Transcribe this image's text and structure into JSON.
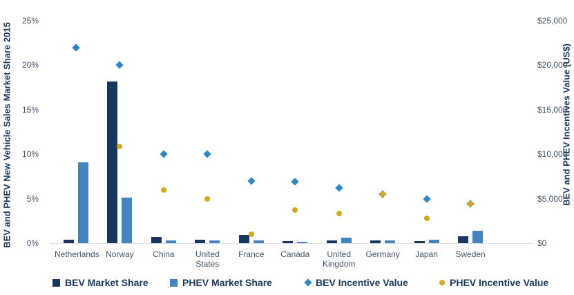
{
  "chart_data": {
    "type": "bar",
    "subtype": "combo-bar-scatter",
    "title": "",
    "categories": [
      "Netherlands",
      "Norway",
      "China",
      "United States",
      "France",
      "Canada",
      "United Kingdom",
      "Germany",
      "Japan",
      "Sweden"
    ],
    "series": [
      {
        "name": "BEV Market Share",
        "render": "bar",
        "axis": "left",
        "unit": "%",
        "color": "#17375E",
        "values": [
          0.4,
          18.2,
          0.7,
          0.4,
          0.9,
          0.2,
          0.3,
          0.3,
          0.2,
          0.8
        ]
      },
      {
        "name": "PHEV Market Share",
        "render": "bar",
        "axis": "left",
        "unit": "%",
        "color": "#4383BE",
        "values": [
          9.1,
          5.1,
          0.3,
          0.3,
          0.3,
          0.15,
          0.6,
          0.3,
          0.35,
          1.4
        ]
      },
      {
        "name": "BEV Incentive Value",
        "render": "diamond",
        "axis": "right",
        "unit": "US$",
        "color": "#2E86C4",
        "values": [
          22000,
          20000,
          10000,
          10000,
          7000,
          6900,
          6200,
          5500,
          5000,
          4400
        ]
      },
      {
        "name": "PHEV Incentive Value",
        "render": "circle",
        "axis": "right",
        "unit": "US$",
        "color": "#D4A91E",
        "values": [
          null,
          10900,
          6000,
          5000,
          1000,
          3700,
          3300,
          5500,
          2800,
          4400
        ]
      }
    ],
    "left_axis": {
      "title": "BEV and PHEV New Vehicle Sales Market Share 2015",
      "min": 0,
      "max": 25,
      "ticks": [
        {
          "label": "25%",
          "value": 25
        },
        {
          "label": "20%",
          "value": 20
        },
        {
          "label": "15%",
          "value": 15
        },
        {
          "label": "10%",
          "value": 10
        },
        {
          "label": "5%",
          "value": 5
        },
        {
          "label": "0%",
          "value": 0
        }
      ]
    },
    "right_axis": {
      "title": "BEV and PHEV Incentives Value (US$)",
      "min": 0,
      "max": 25000,
      "ticks": [
        {
          "label": "$25,000",
          "value": 25000
        },
        {
          "label": "$20,000",
          "value": 20000
        },
        {
          "label": "$15,000",
          "value": 15000
        },
        {
          "label": "$10,000",
          "value": 10000
        },
        {
          "label": "$5,000",
          "value": 5000
        },
        {
          "label": "$0",
          "value": 0
        }
      ]
    },
    "legend": {
      "position": "bottom",
      "items": [
        {
          "label": "BEV Market Share",
          "marker": "square",
          "color": "#17375E"
        },
        {
          "label": "PHEV Market Share",
          "marker": "square",
          "color": "#4383BE"
        },
        {
          "label": "BEV Incentive Value",
          "marker": "diamond",
          "color": "#2E86C4"
        },
        {
          "label": "PHEV Incentive Value",
          "marker": "circle",
          "color": "#D4A91E"
        }
      ]
    },
    "grid": "off",
    "background": "#ffffff"
  }
}
